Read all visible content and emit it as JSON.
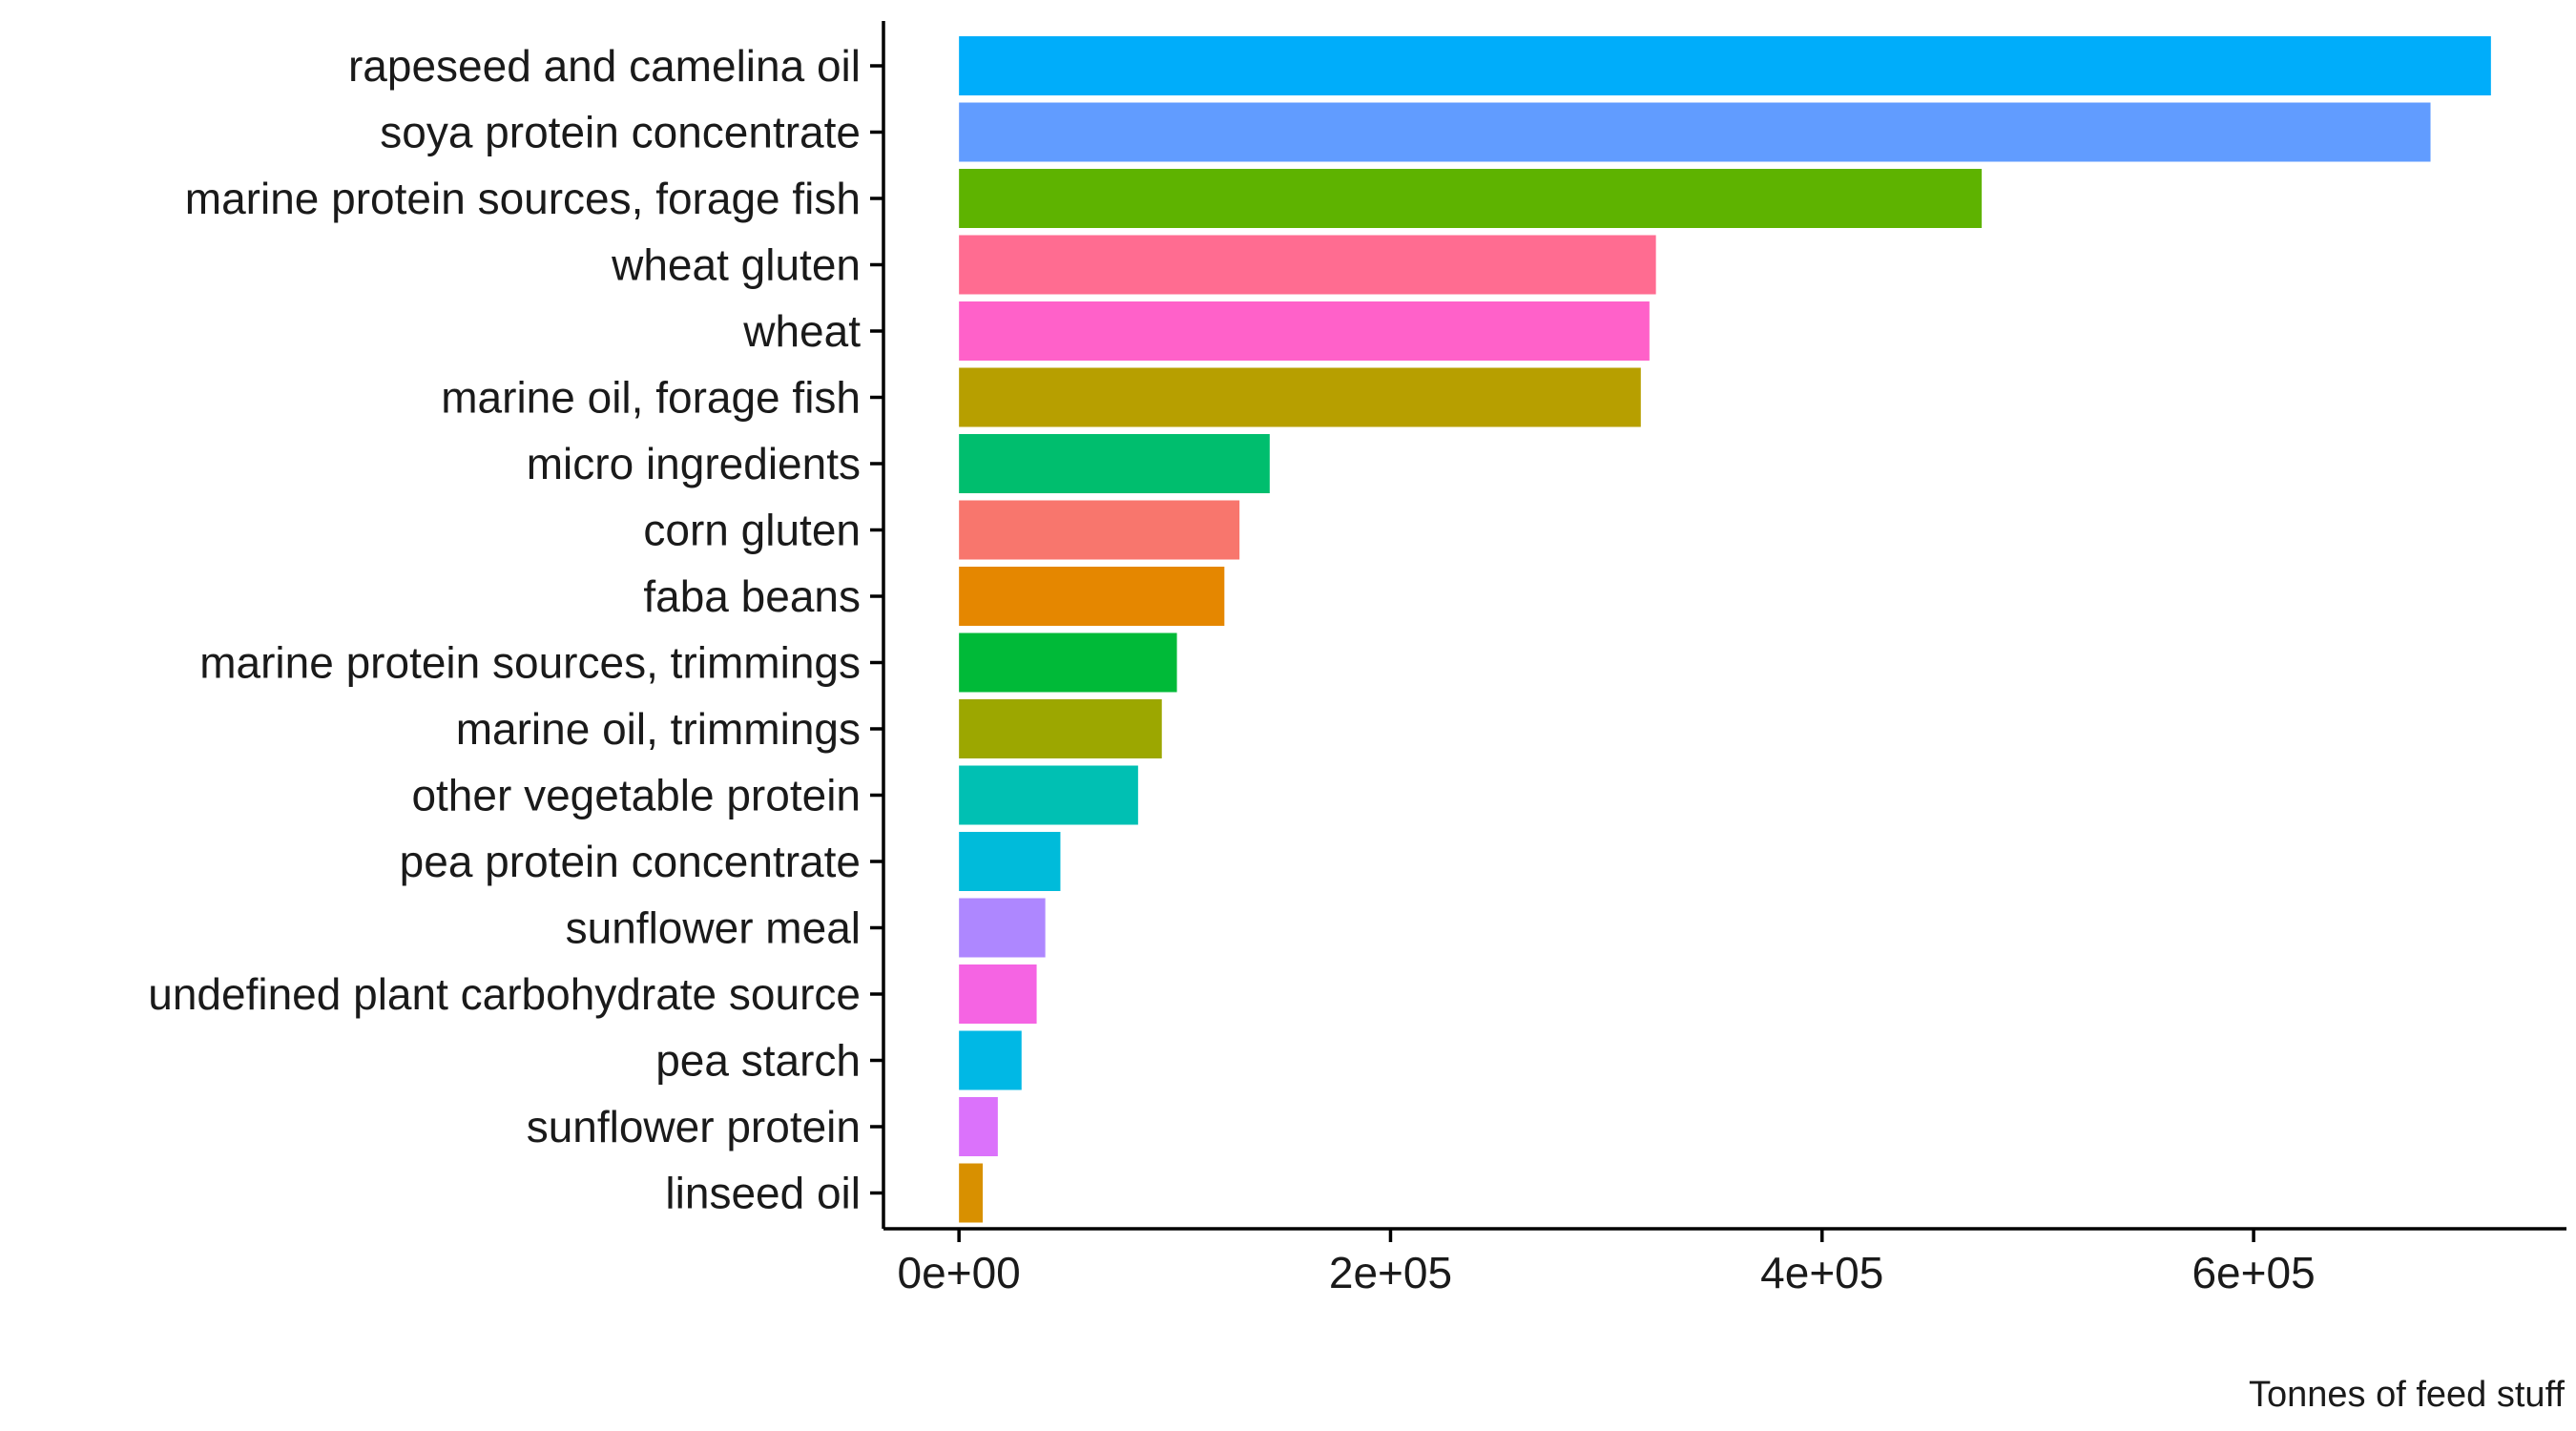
{
  "chart_data": {
    "type": "bar",
    "orientation": "horizontal",
    "categories": [
      "rapeseed and camelina oil",
      "soya protein concentrate",
      "marine protein sources, forage fish",
      "wheat gluten",
      "wheat",
      "marine oil, forage fish",
      "micro ingredients",
      "corn gluten",
      "faba beans",
      "marine protein sources, trimmings",
      "marine oil, trimmings",
      "other vegetable protein",
      "pea protein concentrate",
      "sunflower meal",
      "undefined plant carbohydrate source",
      "pea starch",
      "sunflower protein",
      "linseed oil"
    ],
    "values": [
      710000,
      682000,
      474000,
      323000,
      320000,
      316000,
      144000,
      130000,
      123000,
      101000,
      94000,
      83000,
      47000,
      40000,
      36000,
      29000,
      18000,
      11000
    ],
    "colors": [
      "#00ADFA",
      "#619CFF",
      "#5EB300",
      "#FF6C91",
      "#FF61C9",
      "#B79F00",
      "#00BE6E",
      "#F8766D",
      "#E58700",
      "#00BA38",
      "#9CA700",
      "#00C0B3",
      "#00BBDA",
      "#AE87FF",
      "#F564E3",
      "#00B8E5",
      "#DB72FB",
      "#D89000"
    ],
    "title": "",
    "xlabel": "",
    "ylabel": "",
    "caption": "Tonnes of feed stuff",
    "xlim": [
      -35000,
      745000
    ],
    "xticks": [
      0,
      200000,
      400000,
      600000
    ],
    "xtick_labels": [
      "0e+00",
      "2e+05",
      "4e+05",
      "6e+05"
    ],
    "grid": false,
    "legend": "none"
  }
}
